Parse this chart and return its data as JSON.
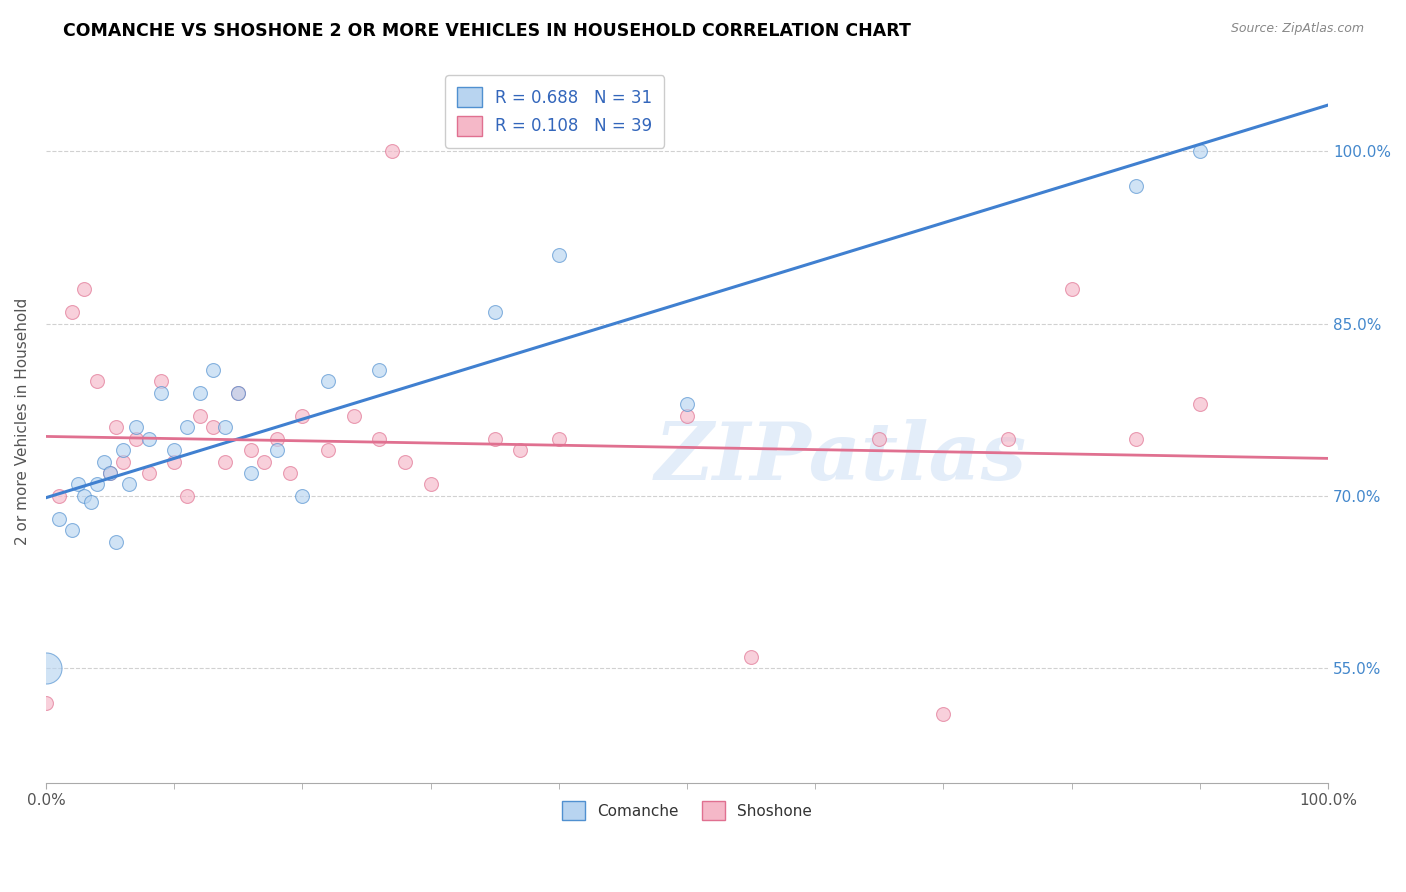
{
  "title": "COMANCHE VS SHOSHONE 2 OR MORE VEHICLES IN HOUSEHOLD CORRELATION CHART",
  "source": "Source: ZipAtlas.com",
  "ylabel": "2 or more Vehicles in Household",
  "legend_comanche": "R = 0.688   N = 31",
  "legend_shoshone": "R = 0.108   N = 39",
  "watermark": "ZIPatlas",
  "blue_fill": "#b8d4f0",
  "blue_edge": "#5090d0",
  "pink_fill": "#f5b8c8",
  "pink_edge": "#e07090",
  "blue_line": "#4080d0",
  "pink_line": "#e07090",
  "comanche_x": [
    0.0,
    1.0,
    2.0,
    2.5,
    3.0,
    3.5,
    4.0,
    4.5,
    5.0,
    5.5,
    6.0,
    6.5,
    7.0,
    8.0,
    9.0,
    10.0,
    11.0,
    12.0,
    13.0,
    14.0,
    15.0,
    16.0,
    18.0,
    20.0,
    22.0,
    26.0,
    35.0,
    40.0,
    50.0,
    85.0,
    90.0
  ],
  "comanche_y": [
    55.0,
    68.0,
    67.0,
    71.0,
    70.0,
    69.5,
    71.0,
    73.0,
    72.0,
    66.0,
    74.0,
    71.0,
    76.0,
    75.0,
    79.0,
    74.0,
    76.0,
    79.0,
    81.0,
    76.0,
    79.0,
    72.0,
    74.0,
    70.0,
    80.0,
    81.0,
    86.0,
    91.0,
    78.0,
    97.0,
    100.0
  ],
  "comanche_big": [
    0
  ],
  "shoshone_x": [
    0.0,
    1.0,
    2.0,
    3.0,
    4.0,
    5.0,
    5.5,
    6.0,
    7.0,
    8.0,
    9.0,
    10.0,
    11.0,
    12.0,
    13.0,
    14.0,
    15.0,
    16.0,
    17.0,
    18.0,
    19.0,
    20.0,
    22.0,
    24.0,
    26.0,
    27.0,
    28.0,
    30.0,
    35.0,
    37.0,
    40.0,
    50.0,
    55.0,
    65.0,
    70.0,
    75.0,
    80.0,
    85.0,
    90.0
  ],
  "shoshone_y": [
    52.0,
    70.0,
    86.0,
    88.0,
    80.0,
    72.0,
    76.0,
    73.0,
    75.0,
    72.0,
    80.0,
    73.0,
    70.0,
    77.0,
    76.0,
    73.0,
    79.0,
    74.0,
    73.0,
    75.0,
    72.0,
    77.0,
    74.0,
    77.0,
    75.0,
    100.0,
    73.0,
    71.0,
    75.0,
    74.0,
    75.0,
    77.0,
    56.0,
    75.0,
    51.0,
    75.0,
    88.0,
    75.0,
    78.0
  ],
  "xlim": [
    0,
    100
  ],
  "ylim": [
    45,
    108
  ],
  "yticks": [
    55,
    70,
    85,
    100
  ],
  "ytick_labels": [
    "55.0%",
    "70.0%",
    "85.0%",
    "100.0%"
  ],
  "dot_size": 100,
  "big_dot_size": 500,
  "alpha": 0.65
}
